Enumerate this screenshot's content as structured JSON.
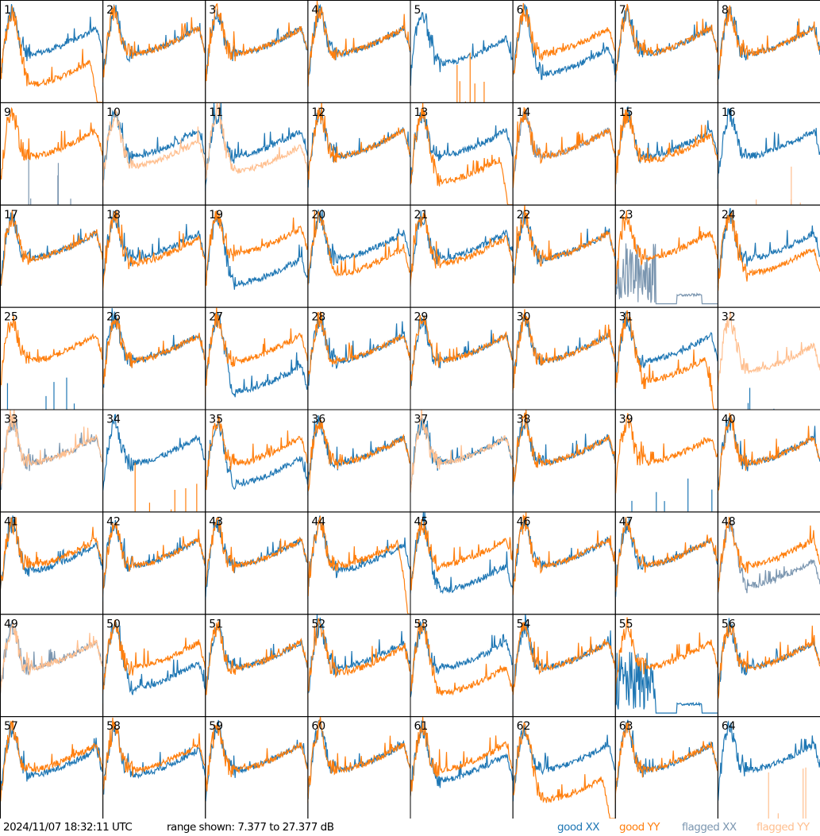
{
  "footer": {
    "timestamp": "2024/11/07 18:32:11 UTC",
    "range_text": "range shown: 7.377 to 27.377 dB",
    "legend": [
      {
        "label": "good XX",
        "color": "#1f77b4"
      },
      {
        "label": "good YY",
        "color": "#ff7f0e"
      },
      {
        "label": "flagged XX",
        "color": "#7b96b0"
      },
      {
        "label": "flagged YY",
        "color": "#ffbf8f"
      }
    ]
  },
  "chart_data": {
    "type": "line",
    "title": "",
    "xlabel": "",
    "ylabel": "dB",
    "ylim": [
      7.377,
      27.377
    ],
    "grid": false,
    "layout": "8x8 small multiples",
    "legend_placement": "bottom-right",
    "panels": [
      {
        "label": "1",
        "xx": "good",
        "yy": "good",
        "xx_off": 0,
        "yy_off": -6,
        "yy_end_drop": true
      },
      {
        "label": "2",
        "xx": "good",
        "yy": "good",
        "xx_off": 0,
        "yy_off": 0
      },
      {
        "label": "3",
        "xx": "good",
        "yy": "good",
        "xx_off": 0,
        "yy_off": 0
      },
      {
        "label": "4",
        "xx": "good",
        "yy": "good",
        "xx_off": 0,
        "yy_off": 0
      },
      {
        "label": "5",
        "xx": "good",
        "yy": "dead",
        "xx_off": -2,
        "yy_off": 0
      },
      {
        "label": "6",
        "xx": "good",
        "yy": "good",
        "xx_off": -4,
        "yy_off": 0
      },
      {
        "label": "7",
        "xx": "good",
        "yy": "good",
        "xx_off": 0,
        "yy_off": 0
      },
      {
        "label": "8",
        "xx": "good",
        "yy": "good",
        "xx_off": 0,
        "yy_off": 0
      },
      {
        "label": "9",
        "xx": "flagged-dead",
        "yy": "good",
        "xx_off": 0,
        "yy_off": 0
      },
      {
        "label": "10",
        "xx": "good",
        "yy": "flagged",
        "xx_off": 0,
        "yy_off": -2
      },
      {
        "label": "11",
        "xx": "good",
        "yy": "flagged",
        "xx_off": 0,
        "yy_off": -3
      },
      {
        "label": "12",
        "xx": "good",
        "yy": "good",
        "xx_off": 0,
        "yy_off": 0
      },
      {
        "label": "13",
        "xx": "good",
        "yy": "good",
        "xx_off": 0,
        "yy_off": -5,
        "yy_end_drop": true
      },
      {
        "label": "14",
        "xx": "flagged",
        "yy": "good",
        "xx_off": 0,
        "yy_off": 0
      },
      {
        "label": "15",
        "xx": "good",
        "yy": "good",
        "xx_off": 0,
        "yy_off": -1
      },
      {
        "label": "16",
        "xx": "good",
        "yy": "flagged-dead",
        "xx_off": 0,
        "yy_off": 0
      },
      {
        "label": "17",
        "xx": "good",
        "yy": "good",
        "xx_off": 0,
        "yy_off": 0
      },
      {
        "label": "18",
        "xx": "good",
        "yy": "good",
        "xx_off": 0,
        "yy_off": -1
      },
      {
        "label": "19",
        "xx": "good",
        "yy": "good",
        "xx_off": -5,
        "yy_off": 1
      },
      {
        "label": "20",
        "xx": "good",
        "yy": "good",
        "xx_off": 0,
        "yy_off": -3
      },
      {
        "label": "21",
        "xx": "good",
        "yy": "good",
        "xx_off": 0,
        "yy_off": -1
      },
      {
        "label": "22",
        "xx": "good",
        "yy": "good",
        "xx_off": 0,
        "yy_off": 0
      },
      {
        "label": "23",
        "xx": "flagged-low",
        "yy": "good",
        "xx_off": 0,
        "yy_off": 0
      },
      {
        "label": "24",
        "xx": "good",
        "yy": "good",
        "xx_off": 0,
        "yy_off": -3
      },
      {
        "label": "25",
        "xx": "dead",
        "yy": "good",
        "xx_off": 0,
        "yy_off": 0
      },
      {
        "label": "26",
        "xx": "good",
        "yy": "good",
        "xx_off": 0,
        "yy_off": 0
      },
      {
        "label": "27",
        "xx": "good",
        "yy": "good",
        "xx_off": -6,
        "yy_off": 0
      },
      {
        "label": "28",
        "xx": "good",
        "yy": "good",
        "xx_off": 0,
        "yy_off": 0
      },
      {
        "label": "29",
        "xx": "good",
        "yy": "good",
        "xx_off": 0,
        "yy_off": 0
      },
      {
        "label": "30",
        "xx": "good",
        "yy": "good",
        "xx_off": 0,
        "yy_off": 0
      },
      {
        "label": "31",
        "xx": "good",
        "yy": "good",
        "xx_off": 0,
        "yy_off": -4,
        "yy_end_drop": true
      },
      {
        "label": "32",
        "xx": "dead",
        "yy": "flagged",
        "xx_off": 0,
        "yy_off": -2
      },
      {
        "label": "33",
        "xx": "flagged",
        "yy": "flagged",
        "xx_off": 0,
        "yy_off": 0
      },
      {
        "label": "34",
        "xx": "good",
        "yy": "dead",
        "xx_off": 0,
        "yy_off": 0
      },
      {
        "label": "35",
        "xx": "good",
        "yy": "good",
        "xx_off": -4,
        "yy_off": 0
      },
      {
        "label": "36",
        "xx": "good",
        "yy": "good",
        "xx_off": 0,
        "yy_off": 0
      },
      {
        "label": "37",
        "xx": "good",
        "yy": "flagged",
        "xx_off": 0,
        "yy_off": 0
      },
      {
        "label": "38",
        "xx": "good",
        "yy": "good",
        "xx_off": 0,
        "yy_off": 0
      },
      {
        "label": "39",
        "xx": "dead",
        "yy": "good",
        "xx_off": 0,
        "yy_off": 0
      },
      {
        "label": "40",
        "xx": "good",
        "yy": "good",
        "xx_off": 0,
        "yy_off": 0
      },
      {
        "label": "41",
        "xx": "good",
        "yy": "good",
        "xx_off": -1,
        "yy_off": 0
      },
      {
        "label": "42",
        "xx": "good",
        "yy": "good",
        "xx_off": 0,
        "yy_off": 0
      },
      {
        "label": "43",
        "xx": "good",
        "yy": "good",
        "xx_off": 0,
        "yy_off": 0
      },
      {
        "label": "44",
        "xx": "good",
        "yy": "good",
        "xx_off": -1,
        "yy_off": 0,
        "yy_end_drop": true
      },
      {
        "label": "45",
        "xx": "good",
        "yy": "good",
        "xx_off": -5,
        "yy_off": 0
      },
      {
        "label": "46",
        "xx": "good",
        "yy": "good",
        "xx_off": 0,
        "yy_off": 0
      },
      {
        "label": "47",
        "xx": "good",
        "yy": "good",
        "xx_off": 0,
        "yy_off": 0
      },
      {
        "label": "48",
        "xx": "flagged",
        "yy": "good",
        "xx_off": -4,
        "yy_off": 0
      },
      {
        "label": "49",
        "xx": "flagged",
        "yy": "flagged",
        "xx_off": 0,
        "yy_off": 0
      },
      {
        "label": "50",
        "xx": "good",
        "yy": "good",
        "xx_off": -4,
        "yy_off": 0
      },
      {
        "label": "51",
        "xx": "good",
        "yy": "good",
        "xx_off": 0,
        "yy_off": 0
      },
      {
        "label": "52",
        "xx": "good",
        "yy": "good",
        "xx_off": 0,
        "yy_off": -1
      },
      {
        "label": "53",
        "xx": "good",
        "yy": "good",
        "xx_off": 0,
        "yy_off": -5
      },
      {
        "label": "54",
        "xx": "good",
        "yy": "good",
        "xx_off": 0,
        "yy_off": 0
      },
      {
        "label": "55",
        "xx": "good-low",
        "yy": "good",
        "xx_off": 0,
        "yy_off": 0
      },
      {
        "label": "56",
        "xx": "good",
        "yy": "good",
        "xx_off": 0,
        "yy_off": 0
      },
      {
        "label": "57",
        "xx": "good",
        "yy": "good",
        "xx_off": -1,
        "yy_off": 0
      },
      {
        "label": "58",
        "xx": "good",
        "yy": "good",
        "xx_off": -1,
        "yy_off": 0
      },
      {
        "label": "59",
        "xx": "good",
        "yy": "good",
        "xx_off": 0,
        "yy_off": 0
      },
      {
        "label": "60",
        "xx": "good",
        "yy": "good",
        "xx_off": 0,
        "yy_off": 0
      },
      {
        "label": "61",
        "xx": "good",
        "yy": "good",
        "xx_off": -2,
        "yy_off": 0
      },
      {
        "label": "62",
        "xx": "good",
        "yy": "good",
        "xx_off": 0,
        "yy_off": -6,
        "yy_end_drop": true
      },
      {
        "label": "63",
        "xx": "good",
        "yy": "good",
        "xx_off": 0,
        "yy_off": 0
      },
      {
        "label": "64",
        "xx": "good",
        "yy": "flagged-dead",
        "xx_off": 0,
        "yy_off": 0
      }
    ]
  }
}
